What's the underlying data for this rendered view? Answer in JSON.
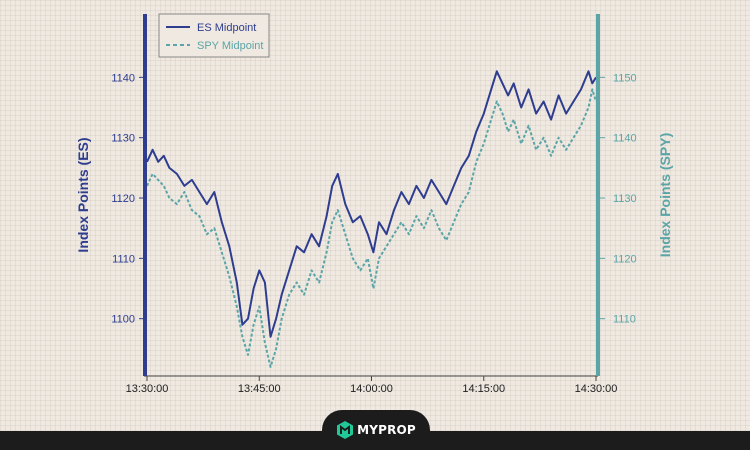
{
  "chart_data": {
    "type": "line",
    "x_ticks": [
      "13:30:00",
      "13:45:00",
      "14:00:00",
      "14:15:00",
      "14:30:00"
    ],
    "left_axis": {
      "label": "Index Points (ES)",
      "ticks": [
        1100,
        1110,
        1120,
        1130,
        1140
      ],
      "ylim": [
        1090.5,
        1150.5
      ]
    },
    "right_axis": {
      "label": "Index Points (SPY)",
      "ticks": [
        1110,
        1120,
        1130,
        1140,
        1150
      ],
      "ylim": [
        1100.5,
        1160.5
      ]
    },
    "legend_position": "top-left",
    "series": [
      {
        "name": "ES Midpoint",
        "axis": "left",
        "color": "#2e3d8f",
        "style": "solid",
        "points": [
          [
            "13:30:00",
            1126
          ],
          [
            "13:30:45",
            1128
          ],
          [
            "13:31:30",
            1126
          ],
          [
            "13:32:15",
            1127
          ],
          [
            "13:33:00",
            1125
          ],
          [
            "13:34:00",
            1124
          ],
          [
            "13:35:00",
            1122
          ],
          [
            "13:36:00",
            1123
          ],
          [
            "13:37:00",
            1121
          ],
          [
            "13:38:00",
            1119
          ],
          [
            "13:39:00",
            1121
          ],
          [
            "13:40:00",
            1116
          ],
          [
            "13:41:00",
            1112
          ],
          [
            "13:42:00",
            1106
          ],
          [
            "13:42:45",
            1099
          ],
          [
            "13:43:30",
            1100
          ],
          [
            "13:44:15",
            1105
          ],
          [
            "13:45:00",
            1108
          ],
          [
            "13:45:45",
            1106
          ],
          [
            "13:46:30",
            1097
          ],
          [
            "13:47:15",
            1100
          ],
          [
            "13:48:00",
            1104
          ],
          [
            "13:49:00",
            1108
          ],
          [
            "13:50:00",
            1112
          ],
          [
            "13:51:00",
            1111
          ],
          [
            "13:52:00",
            1114
          ],
          [
            "13:53:00",
            1112
          ],
          [
            "13:54:00",
            1117
          ],
          [
            "13:54:45",
            1122
          ],
          [
            "13:55:30",
            1124
          ],
          [
            "13:56:30",
            1119
          ],
          [
            "13:57:30",
            1116
          ],
          [
            "13:58:30",
            1117
          ],
          [
            "13:59:30",
            1114
          ],
          [
            "14:00:15",
            1111
          ],
          [
            "14:01:00",
            1116
          ],
          [
            "14:02:00",
            1114
          ],
          [
            "14:03:00",
            1118
          ],
          [
            "14:04:00",
            1121
          ],
          [
            "14:05:00",
            1119
          ],
          [
            "14:06:00",
            1122
          ],
          [
            "14:07:00",
            1120
          ],
          [
            "14:08:00",
            1123
          ],
          [
            "14:09:00",
            1121
          ],
          [
            "14:10:00",
            1119
          ],
          [
            "14:11:00",
            1122
          ],
          [
            "14:12:00",
            1125
          ],
          [
            "14:13:00",
            1127
          ],
          [
            "14:14:00",
            1131
          ],
          [
            "14:15:00",
            1134
          ],
          [
            "14:16:00",
            1138
          ],
          [
            "14:16:45",
            1141
          ],
          [
            "14:17:30",
            1139
          ],
          [
            "14:18:15",
            1137
          ],
          [
            "14:19:00",
            1139
          ],
          [
            "14:20:00",
            1135
          ],
          [
            "14:21:00",
            1138
          ],
          [
            "14:22:00",
            1134
          ],
          [
            "14:23:00",
            1136
          ],
          [
            "14:24:00",
            1133
          ],
          [
            "14:25:00",
            1137
          ],
          [
            "14:26:00",
            1134
          ],
          [
            "14:27:00",
            1136
          ],
          [
            "14:28:00",
            1138
          ],
          [
            "14:29:00",
            1141
          ],
          [
            "14:29:30",
            1139
          ],
          [
            "14:30:00",
            1140
          ]
        ]
      },
      {
        "name": "SPY Midpoint",
        "axis": "right",
        "color": "#5ba5a8",
        "style": "dashed",
        "points": [
          [
            "13:30:00",
            1132
          ],
          [
            "13:30:45",
            1134
          ],
          [
            "13:31:30",
            1133
          ],
          [
            "13:32:15",
            1132
          ],
          [
            "13:33:00",
            1130
          ],
          [
            "13:34:00",
            1129
          ],
          [
            "13:35:00",
            1131
          ],
          [
            "13:36:00",
            1128
          ],
          [
            "13:37:00",
            1127
          ],
          [
            "13:38:00",
            1124
          ],
          [
            "13:39:00",
            1125
          ],
          [
            "13:40:00",
            1121
          ],
          [
            "13:41:00",
            1117
          ],
          [
            "13:42:00",
            1112
          ],
          [
            "13:42:45",
            1107
          ],
          [
            "13:43:30",
            1104
          ],
          [
            "13:44:15",
            1109
          ],
          [
            "13:45:00",
            1112
          ],
          [
            "13:45:45",
            1106
          ],
          [
            "13:46:30",
            1102
          ],
          [
            "13:47:15",
            1105
          ],
          [
            "13:48:00",
            1110
          ],
          [
            "13:49:00",
            1114
          ],
          [
            "13:50:00",
            1116
          ],
          [
            "13:51:00",
            1114
          ],
          [
            "13:52:00",
            1118
          ],
          [
            "13:53:00",
            1116
          ],
          [
            "13:54:00",
            1121
          ],
          [
            "13:54:45",
            1126
          ],
          [
            "13:55:30",
            1128
          ],
          [
            "13:56:30",
            1124
          ],
          [
            "13:57:30",
            1120
          ],
          [
            "13:58:30",
            1118
          ],
          [
            "13:59:30",
            1120
          ],
          [
            "14:00:15",
            1115
          ],
          [
            "14:01:00",
            1120
          ],
          [
            "14:02:00",
            1122
          ],
          [
            "14:03:00",
            1124
          ],
          [
            "14:04:00",
            1126
          ],
          [
            "14:05:00",
            1124
          ],
          [
            "14:06:00",
            1127
          ],
          [
            "14:07:00",
            1125
          ],
          [
            "14:08:00",
            1128
          ],
          [
            "14:09:00",
            1125
          ],
          [
            "14:10:00",
            1123
          ],
          [
            "14:11:00",
            1126
          ],
          [
            "14:12:00",
            1129
          ],
          [
            "14:13:00",
            1131
          ],
          [
            "14:14:00",
            1136
          ],
          [
            "14:15:00",
            1139
          ],
          [
            "14:16:00",
            1143
          ],
          [
            "14:16:45",
            1146
          ],
          [
            "14:17:30",
            1144
          ],
          [
            "14:18:15",
            1141
          ],
          [
            "14:19:00",
            1143
          ],
          [
            "14:20:00",
            1139
          ],
          [
            "14:21:00",
            1142
          ],
          [
            "14:22:00",
            1138
          ],
          [
            "14:23:00",
            1140
          ],
          [
            "14:24:00",
            1137
          ],
          [
            "14:25:00",
            1140
          ],
          [
            "14:26:00",
            1138
          ],
          [
            "14:27:00",
            1140
          ],
          [
            "14:28:00",
            1142
          ],
          [
            "14:29:00",
            1145
          ],
          [
            "14:29:30",
            1148
          ],
          [
            "14:30:00",
            1146
          ]
        ]
      }
    ]
  },
  "branding": {
    "logo_text": "MYPROP"
  }
}
